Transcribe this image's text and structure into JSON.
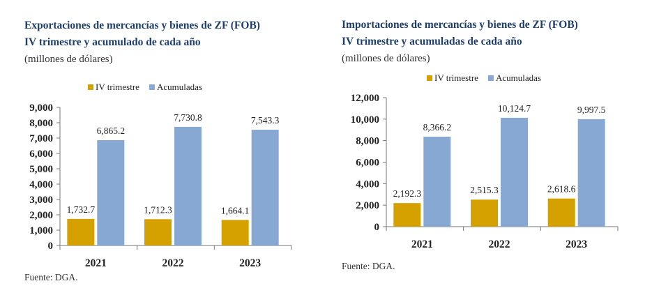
{
  "colors": {
    "title": "#1f3f6b",
    "iv": "#d4a100",
    "acc": "#86a8d2"
  },
  "charts": [
    {
      "title1": "Exportaciones de mercancías y bienes de ZF (FOB)",
      "title2": "IV trimestre y acumulado de cada año",
      "unit": "(millones de dólares)",
      "source": "Fuente: DGA."
    },
    {
      "title1": "Importaciones de mercancías y bienes de ZF (FOB)",
      "title2": "IV trimestre y acumuladas de cada año",
      "unit": "(millones de dólares)",
      "source": "Fuente: DGA."
    }
  ],
  "chart_data": [
    {
      "type": "bar",
      "categories": [
        "2021",
        "2022",
        "2023"
      ],
      "series": [
        {
          "name": "IV trimestre",
          "values": [
            1732.7,
            1712.3,
            1664.1
          ],
          "labels": [
            "1,732.7",
            "1,712.3",
            "1,664.1"
          ]
        },
        {
          "name": "Acumuladas",
          "values": [
            6865.2,
            7730.8,
            7543.3
          ],
          "labels": [
            "6,865.2",
            "7,730.8",
            "7,543.3"
          ]
        }
      ],
      "ylim": [
        0,
        9000
      ],
      "yticks": [
        "0",
        "1,000",
        "2,000",
        "3,000",
        "4,000",
        "5,000",
        "6,000",
        "7,000",
        "8,000",
        "9,000"
      ],
      "grid": false,
      "legend": "top"
    },
    {
      "type": "bar",
      "categories": [
        "2021",
        "2022",
        "2023"
      ],
      "series": [
        {
          "name": "IV trimestre",
          "values": [
            2192.3,
            2515.3,
            2618.6
          ],
          "labels": [
            "2,192.3",
            "2,515.3",
            "2,618.6"
          ]
        },
        {
          "name": "Acumuladas",
          "values": [
            8366.2,
            10124.7,
            9997.5
          ],
          "labels": [
            "8,366.2",
            "10,124.7",
            "9,997.5"
          ]
        }
      ],
      "ylim": [
        0,
        12000
      ],
      "yticks": [
        "0",
        "2,000",
        "4,000",
        "6,000",
        "8,000",
        "10,000",
        "12,000"
      ],
      "grid": false,
      "legend": "top"
    }
  ]
}
